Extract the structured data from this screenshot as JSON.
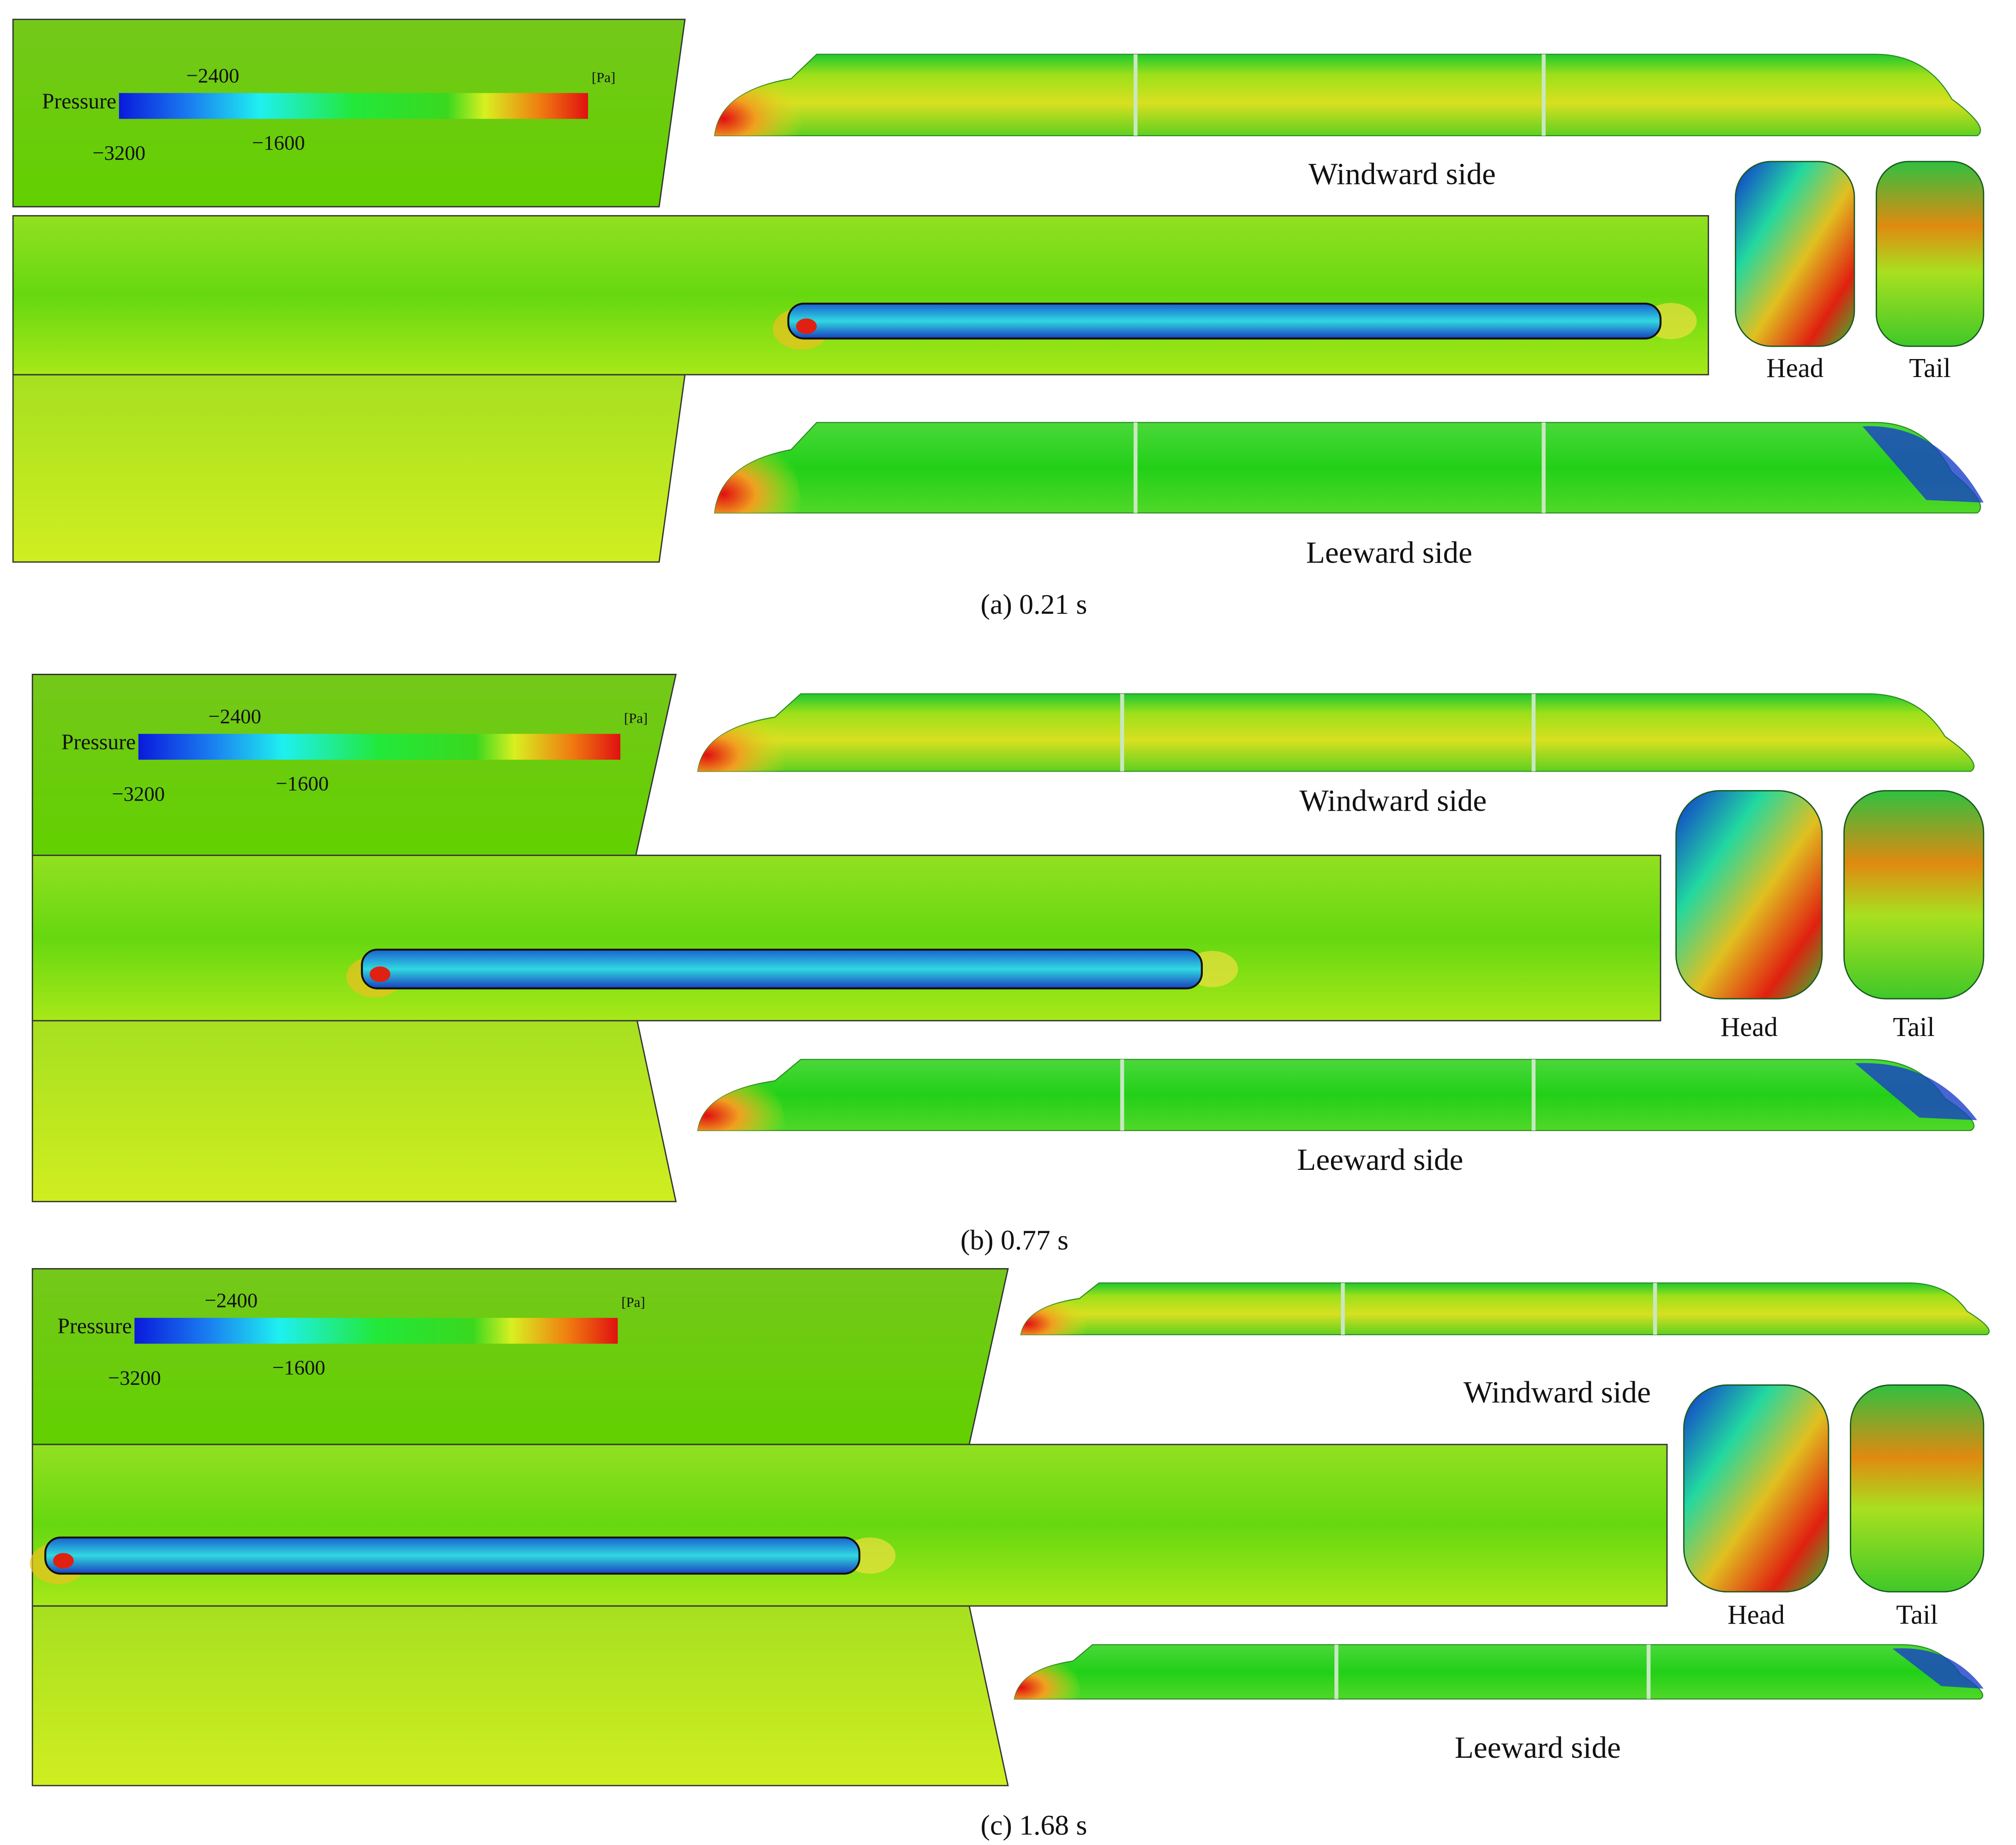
{
  "panels": [
    {
      "caption": "(a) 0.21 s",
      "legend": {
        "title": "Pressure",
        "unit": "[Pa]",
        "ticks": [
          "−2400",
          "−3200",
          "−1600"
        ]
      },
      "windward": "Windward side",
      "leeward": "Leeward side",
      "head": "Head",
      "tail": "Tail"
    },
    {
      "caption": "(b) 0.77 s",
      "legend": {
        "title": "Pressure",
        "unit": "[Pa]",
        "ticks": [
          "−2400",
          "−3200",
          "−1600"
        ]
      },
      "windward": "Windward side",
      "leeward": "Leeward side",
      "head": "Head",
      "tail": "Tail"
    },
    {
      "caption": "(c) 1.68 s",
      "legend": {
        "title": "Pressure",
        "unit": "[Pa]",
        "ticks": [
          "−2400",
          "−3200",
          "−1600"
        ]
      },
      "windward": "Windward side",
      "leeward": "Leeward side",
      "head": "Head",
      "tail": "Tail"
    }
  ]
}
